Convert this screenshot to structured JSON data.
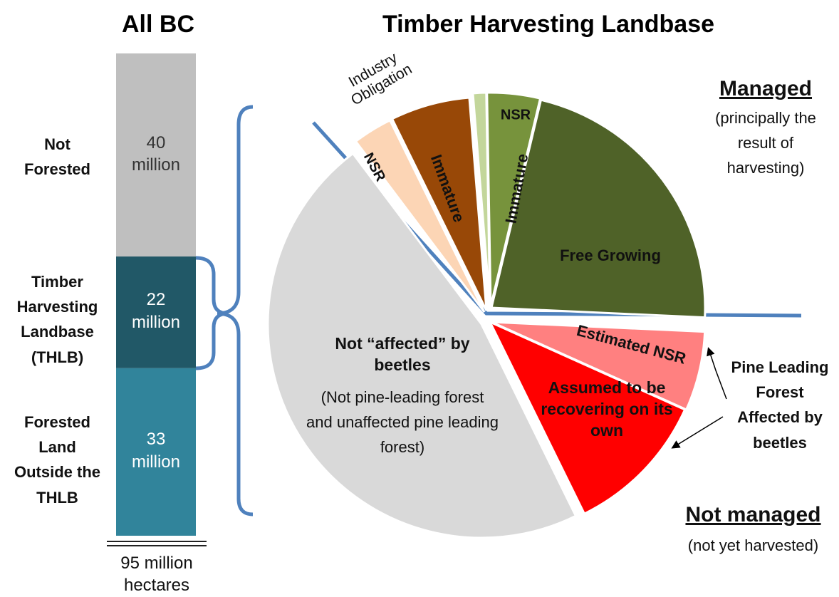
{
  "chart_data": [
    {
      "type": "stacked_bar",
      "title": "All BC",
      "categories": [
        "Not Forested",
        "Timber Harvesting Landbase (THLB)",
        "Forested Land Outside the THLB"
      ],
      "values": [
        40,
        22,
        33
      ],
      "value_labels": [
        "40 million",
        "22 million",
        "33 million"
      ],
      "colors": [
        "#bfbfbf",
        "#215867",
        "#31849b"
      ],
      "total_label": "95 million hectares"
    },
    {
      "type": "pie",
      "title": "Timber Harvesting Landbase",
      "categories": [
        "NSR",
        "Immature",
        "NSR",
        "Immature",
        "Free Growing",
        "Estimated NSR",
        "Assumed to be recovering on its own",
        "Not “affected” by beetles"
      ],
      "values": [
        3,
        6,
        1,
        4,
        22,
        6,
        11,
        47
      ],
      "colors": [
        "#fcd5b5",
        "#984807",
        "#c3d69b",
        "#77933c",
        "#4f6228",
        "#ff8080",
        "#ff0000",
        "#d9d9d9"
      ],
      "annotations": {
        "industry": "Industry Obligation",
        "managed": "Managed",
        "managed_note": "(principally the result of harvesting)",
        "not_affected_note": "(Not pine-leading forest and unaffected pine leading forest)",
        "pine": "Pine Leading Forest Affected by beetles",
        "not_managed": "Not managed",
        "not_managed_note": "(not yet harvested)"
      }
    }
  ]
}
